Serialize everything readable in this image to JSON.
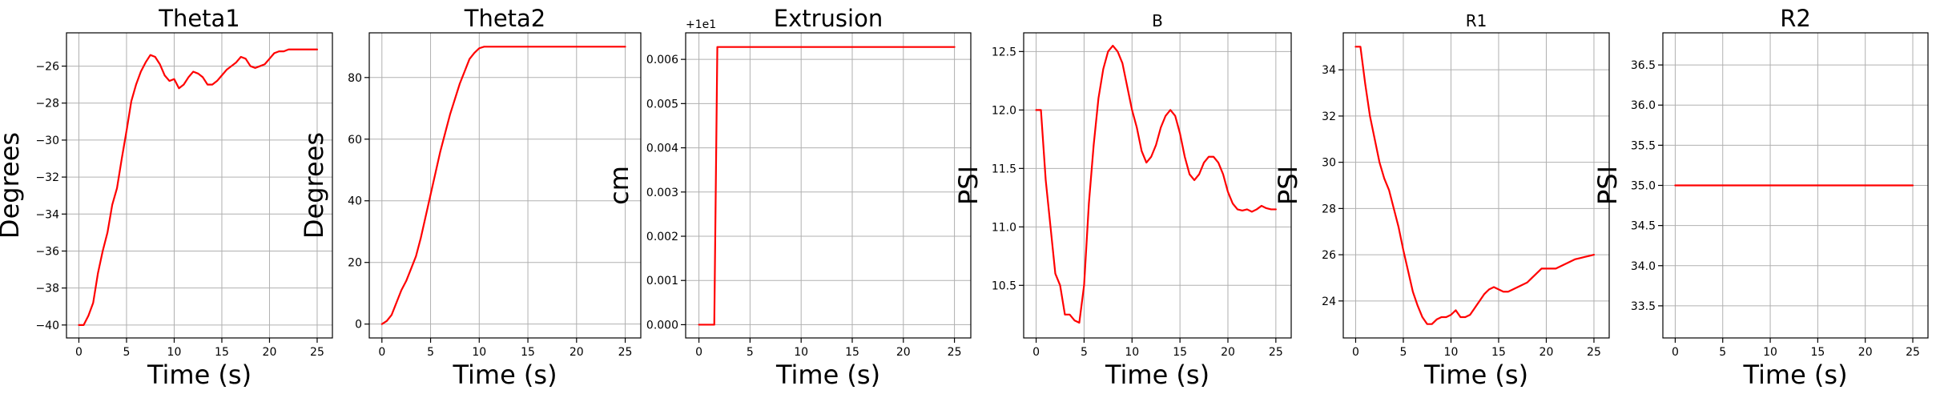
{
  "chart_data": [
    {
      "type": "line",
      "title": "Theta1",
      "xlabel": "Time (s)",
      "ylabel": "Degrees",
      "xlim": [
        -1.3,
        26.6
      ],
      "ylim": [
        -40.7,
        -24.2
      ],
      "xticks": [
        0,
        5,
        10,
        15,
        20,
        25
      ],
      "yticks": [
        -40,
        -38,
        -36,
        -34,
        -32,
        -30,
        -28,
        -26
      ],
      "ytick_labels": [
        "−40",
        "−38",
        "−36",
        "−34",
        "−32",
        "−30",
        "−28",
        "−26"
      ],
      "grid": true,
      "series": [
        {
          "color": "#ff0000",
          "x": [
            0,
            0.5,
            1,
            1.5,
            2,
            2.5,
            3,
            3.5,
            4,
            4.5,
            5,
            5.5,
            6,
            6.5,
            7,
            7.5,
            8,
            8.5,
            9,
            9.5,
            10,
            10.5,
            11,
            11.5,
            12,
            12.5,
            13,
            13.5,
            14,
            14.5,
            15,
            15.5,
            16,
            16.5,
            17,
            17.5,
            18,
            18.5,
            19,
            19.5,
            20,
            20.5,
            21,
            21.5,
            22,
            22.5,
            23,
            23.5,
            24,
            24.5,
            25
          ],
          "y": [
            -40,
            -40,
            -39.5,
            -38.8,
            -37.2,
            -36.0,
            -35.0,
            -33.5,
            -32.6,
            -31.0,
            -29.5,
            -27.9,
            -27.0,
            -26.3,
            -25.8,
            -25.4,
            -25.5,
            -25.9,
            -26.5,
            -26.8,
            -26.7,
            -27.2,
            -27.0,
            -26.6,
            -26.3,
            -26.4,
            -26.6,
            -27.0,
            -27.0,
            -26.8,
            -26.5,
            -26.2,
            -26.0,
            -25.8,
            -25.5,
            -25.6,
            -26.0,
            -26.1,
            -26.0,
            -25.9,
            -25.6,
            -25.3,
            -25.2,
            -25.2,
            -25.1,
            -25.1,
            -25.1,
            -25.1,
            -25.1,
            -25.1,
            -25.1
          ]
        }
      ]
    },
    {
      "type": "line",
      "title": "Theta2",
      "xlabel": "Time (s)",
      "ylabel": "Degrees",
      "xlim": [
        -1.3,
        26.6
      ],
      "ylim": [
        -4.5,
        94.5
      ],
      "xticks": [
        0,
        5,
        10,
        15,
        20,
        25
      ],
      "yticks": [
        0,
        20,
        40,
        60,
        80
      ],
      "ytick_labels": [
        "0",
        "20",
        "40",
        "60",
        "80"
      ],
      "grid": true,
      "series": [
        {
          "color": "#ff0000",
          "x": [
            0,
            0.5,
            1,
            1.5,
            2,
            2.5,
            3,
            3.5,
            4,
            4.5,
            5,
            5.5,
            6,
            6.5,
            7,
            7.5,
            8,
            8.5,
            9,
            9.5,
            10,
            10.5,
            11,
            12,
            14,
            16,
            18,
            20,
            22,
            24,
            25
          ],
          "y": [
            0,
            1,
            3,
            7,
            11,
            14,
            18,
            22,
            28,
            35,
            42,
            49,
            56,
            62,
            68,
            73,
            78,
            82,
            86,
            88,
            89.5,
            90,
            90,
            90,
            90,
            90,
            90,
            90,
            90,
            90,
            90
          ]
        }
      ]
    },
    {
      "type": "line",
      "title": "Extrusion",
      "xlabel": "Time (s)",
      "ylabel": "cm",
      "offset_text": "+1e1",
      "xlim": [
        -1.3,
        26.6
      ],
      "ylim": [
        -0.0003,
        0.0066
      ],
      "xticks": [
        0,
        5,
        10,
        15,
        20,
        25
      ],
      "yticks": [
        0,
        0.001,
        0.002,
        0.003,
        0.004,
        0.005,
        0.006
      ],
      "ytick_labels": [
        "0.000",
        "0.001",
        "0.002",
        "0.003",
        "0.004",
        "0.005",
        "0.006"
      ],
      "grid": true,
      "series": [
        {
          "color": "#ff0000",
          "x": [
            0,
            1.5,
            1.8,
            10,
            20,
            25
          ],
          "y": [
            0,
            0,
            0.00628,
            0.00628,
            0.00628,
            0.00628
          ]
        }
      ]
    },
    {
      "type": "line",
      "title": "B",
      "xlabel": "Time (s)",
      "ylabel": "PSI",
      "xlim": [
        -1.3,
        26.6
      ],
      "ylim": [
        10.05,
        12.66
      ],
      "xticks": [
        0,
        5,
        10,
        15,
        20,
        25
      ],
      "yticks": [
        10.5,
        11.0,
        11.5,
        12.0,
        12.5
      ],
      "ytick_labels": [
        "10.5",
        "11.0",
        "11.5",
        "12.0",
        "12.5"
      ],
      "grid": true,
      "series": [
        {
          "color": "#ff0000",
          "x": [
            0,
            0.5,
            1,
            1.5,
            2,
            2.5,
            3,
            3.5,
            4,
            4.5,
            5,
            5.5,
            6,
            6.5,
            7,
            7.5,
            8,
            8.5,
            9,
            9.5,
            10,
            10.5,
            11,
            11.5,
            12,
            12.5,
            13,
            13.5,
            14,
            14.5,
            15,
            15.5,
            16,
            16.5,
            17,
            17.5,
            18,
            18.5,
            19,
            19.5,
            20,
            20.5,
            21,
            21.5,
            22,
            22.5,
            23,
            23.5,
            24,
            24.5,
            25
          ],
          "y": [
            12.0,
            12.0,
            11.4,
            11.0,
            10.6,
            10.5,
            10.25,
            10.25,
            10.2,
            10.18,
            10.5,
            11.2,
            11.7,
            12.1,
            12.35,
            12.5,
            12.55,
            12.5,
            12.4,
            12.2,
            12.0,
            11.85,
            11.65,
            11.55,
            11.6,
            11.7,
            11.85,
            11.95,
            12.0,
            11.95,
            11.8,
            11.6,
            11.45,
            11.4,
            11.45,
            11.55,
            11.6,
            11.6,
            11.55,
            11.45,
            11.3,
            11.2,
            11.15,
            11.14,
            11.15,
            11.13,
            11.15,
            11.18,
            11.16,
            11.15,
            11.15
          ]
        }
      ]
    },
    {
      "type": "line",
      "title": "R1",
      "xlabel": "Time (s)",
      "ylabel": "PSI",
      "xlim": [
        -1.3,
        26.6
      ],
      "ylim": [
        22.4,
        35.6
      ],
      "xticks": [
        0,
        5,
        10,
        15,
        20,
        25
      ],
      "yticks": [
        24,
        26,
        28,
        30,
        32,
        34
      ],
      "ytick_labels": [
        "24",
        "26",
        "28",
        "30",
        "32",
        "34"
      ],
      "grid": true,
      "series": [
        {
          "color": "#ff0000",
          "x": [
            0,
            0.5,
            1,
            1.5,
            2,
            2.5,
            3,
            3.5,
            4,
            4.5,
            5,
            5.5,
            6,
            6.5,
            7,
            7.5,
            8,
            8.5,
            9,
            9.5,
            10,
            10.5,
            11,
            11.5,
            12,
            12.5,
            13,
            13.5,
            14,
            14.5,
            15,
            15.5,
            16,
            16.5,
            17,
            17.5,
            18,
            18.5,
            19,
            19.5,
            20,
            20.5,
            21,
            21.5,
            22,
            22.5,
            23,
            23.5,
            24,
            24.5,
            25
          ],
          "y": [
            35,
            35,
            33.4,
            32.0,
            31.0,
            30.0,
            29.3,
            28.8,
            28.0,
            27.2,
            26.2,
            25.3,
            24.4,
            23.8,
            23.3,
            23.0,
            23.0,
            23.2,
            23.3,
            23.3,
            23.4,
            23.6,
            23.3,
            23.3,
            23.4,
            23.7,
            24.0,
            24.3,
            24.5,
            24.6,
            24.5,
            24.4,
            24.4,
            24.5,
            24.6,
            24.7,
            24.8,
            25.0,
            25.2,
            25.4,
            25.4,
            25.4,
            25.4,
            25.5,
            25.6,
            25.7,
            25.8,
            25.85,
            25.9,
            25.95,
            26.0
          ]
        }
      ]
    },
    {
      "type": "line",
      "title": "R2",
      "xlabel": "Time (s)",
      "ylabel": "PSI",
      "xlim": [
        -1.3,
        26.6
      ],
      "ylim": [
        33.1,
        36.9
      ],
      "xticks": [
        0,
        5,
        10,
        15,
        20,
        25
      ],
      "yticks": [
        33.5,
        34.0,
        34.5,
        35.0,
        35.5,
        36.0,
        36.5
      ],
      "ytick_labels": [
        "33.5",
        "34.0",
        "34.5",
        "35.0",
        "35.5",
        "36.0",
        "36.5"
      ],
      "grid": true,
      "series": [
        {
          "color": "#ff0000",
          "x": [
            0,
            25
          ],
          "y": [
            35,
            35
          ]
        }
      ]
    }
  ]
}
